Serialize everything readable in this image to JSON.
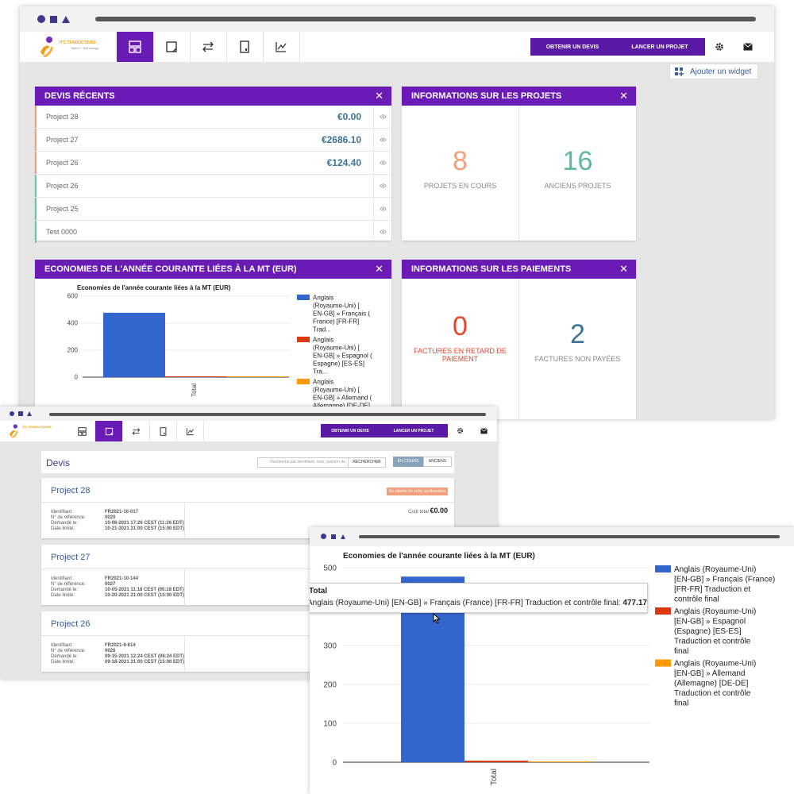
{
  "app": {
    "brand_name": "ITC TRADUCTIONS",
    "brand_tagline": "Talent + Technology"
  },
  "header": {
    "quote_btn": "OBTENIR UN DEVIS",
    "project_btn": "LANCER UN PROJET"
  },
  "dashboard": {
    "add_widget": "Ajouter un widget",
    "recent_quotes": {
      "title": "DEVIS RÉCENTS",
      "rows": [
        {
          "name": "Project 28",
          "amount": "€0.00",
          "status_color": "#f0a07a"
        },
        {
          "name": "Project 27",
          "amount": "€2686.10",
          "status_color": "#f0a07a"
        },
        {
          "name": "Project 26",
          "amount": "€124.40",
          "status_color": "#f0a07a"
        },
        {
          "name": "Project 26",
          "amount": "",
          "status_color": "#6cc7a4"
        },
        {
          "name": "Project 25",
          "amount": "",
          "status_color": "#6cc7a4"
        },
        {
          "name": "Test 0000",
          "amount": "",
          "status_color": "#6cc7a4"
        }
      ]
    },
    "projects_info": {
      "title": "INFORMATIONS SUR LES PROJETS",
      "ongoing_value": "8",
      "ongoing_label": "PROJETS EN COURS",
      "past_value": "16",
      "past_label": "ANCIENS PROJETS"
    },
    "savings": {
      "title": "ECONOMIES DE L'ANNÉE COURANTE LIÉES À LA MT (EUR)"
    },
    "payments_info": {
      "title": "INFORMATIONS SUR LES PAIEMENTS",
      "late_value": "0",
      "late_label": "FACTURES EN RETARD DE PAIEMENT",
      "unpaid_value": "2",
      "unpaid_label": "FACTURES NON PAYÉES"
    }
  },
  "quotes_page": {
    "title": "Devis",
    "search_placeholder": "Recherche par identifiant, nom, numéro de",
    "search_btn": "RECHERCHER",
    "tab_ongoing": "EN COURS",
    "tab_past": "ANCIENS",
    "projects": [
      {
        "name": "Project 28",
        "status": "En attente de votre confirmation",
        "total_label": "Coût total",
        "total": "€0.00",
        "fields": [
          [
            "Identifiant:",
            "FR2021-10-017"
          ],
          [
            "N° de référence:",
            "0020"
          ],
          [
            "Demandé le:",
            "10-06-2021 17:26 CEST (11:26 EDT)"
          ],
          [
            "Date limite:",
            "10-21-2021 21:00 CEST (15:00 EDT)"
          ]
        ]
      },
      {
        "name": "Project 27",
        "fields": [
          [
            "Identifiant:",
            "FR2021-10-144"
          ],
          [
            "N° de référence:",
            "0027"
          ],
          [
            "Demandé le:",
            "10-05-2021 11:18 CEST (05:18 EDT)"
          ],
          [
            "Date limite:",
            "10-20-2021 21:00 CEST (15:00 EDT)"
          ]
        ]
      },
      {
        "name": "Project 26",
        "fields": [
          [
            "Identifiant:",
            "FR2021-9-614"
          ],
          [
            "N° de référence:",
            "0026"
          ],
          [
            "Demandé le:",
            "09-15-2021 12:24 CEST (06:24 EDT)"
          ],
          [
            "Date limite:",
            "09-18-2021 21:00 CEST (15:00 EDT)"
          ]
        ]
      }
    ]
  },
  "tooltip": {
    "title": "Total",
    "line": "Anglais (Royaume-Uni) [EN-GB] » Français (France) [FR-FR] Traduction et contrôle final:",
    "value": "477.17"
  },
  "chart_data": [
    {
      "type": "bar",
      "title": "Economies de l'année courante liées à la MT (EUR)",
      "categories": [
        "Total"
      ],
      "ylim": [
        0,
        600
      ],
      "yticks": [
        "600",
        "400",
        "200",
        "0"
      ],
      "series": [
        {
          "name": "Anglais (Royaume-Uni) [ EN-GB] » Français ( France) [FR-FR] Trad...",
          "values": [
            477.17
          ],
          "color": "#3366cc"
        },
        {
          "name": "Anglais (Royaume-Uni) [ EN-GB] » Espagnol ( Espagne) [ES-ES] Tra...",
          "values": [
            4
          ],
          "color": "#dc3912"
        },
        {
          "name": "Anglais (Royaume-Uni) [ EN-GB] » Allemand ( Allemagne) [DE-DE] T...",
          "values": [
            1
          ],
          "color": "#ff9900"
        }
      ]
    },
    {
      "type": "bar",
      "title": "Economies de l'année courante liées à la MT (EUR)",
      "categories": [
        "Total"
      ],
      "ylim": [
        0,
        500
      ],
      "yticks": [
        "500",
        "300",
        "200",
        "100",
        "0"
      ],
      "series": [
        {
          "name": "Anglais (Royaume-Uni) [EN-GB] » Français (France) [FR-FR] Traduction et contrôle final",
          "values": [
            477.17
          ],
          "color": "#3366cc"
        },
        {
          "name": "Anglais (Royaume-Uni) [EN-GB] » Espagnol (Espagne) [ES-ES] Traduction et contrôle final",
          "values": [
            4
          ],
          "color": "#dc3912"
        },
        {
          "name": "Anglais (Royaume-Uni) [EN-GB] » Allemand (Allemagne) [DE-DE] Traduction et contrôle final",
          "values": [
            1
          ],
          "color": "#ff9900"
        }
      ]
    }
  ]
}
